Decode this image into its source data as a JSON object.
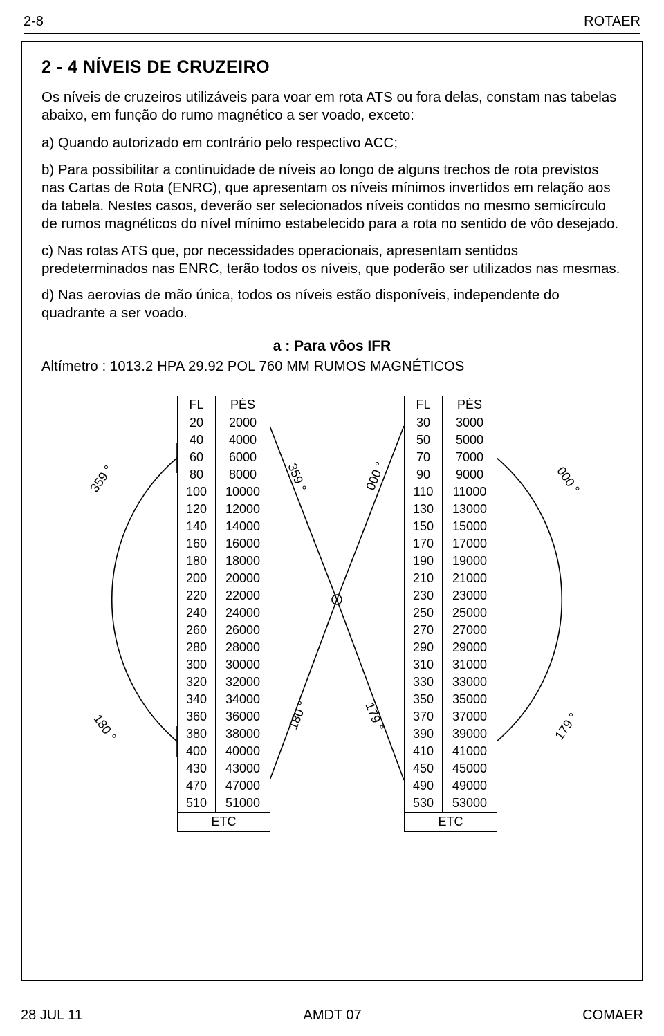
{
  "header": {
    "left": "2-8",
    "right": "ROTAER"
  },
  "section_title": "2 - 4 NÍVEIS DE CRUZEIRO",
  "p_intro": "Os níveis de cruzeiros utilizáveis para voar em rota ATS ou fora delas, constam nas tabelas abaixo, em função do rumo magnético a ser voado, exceto:",
  "p_a": "a) Quando autorizado em contrário pelo respectivo ACC;",
  "p_b": "b) Para possibilitar a continuidade de níveis ao longo de alguns trechos de rota previstos nas Cartas de Rota (ENRC), que apresentam os níveis mínimos invertidos em relação aos da  tabela. Nestes casos, deverão ser selecionados níveis contidos no mesmo semicírculo de rumos magnéticos do nível mínimo estabelecido para a rota no sentido de vôo desejado.",
  "p_c": "c) Nas rotas ATS que, por necessidades operacionais, apresentam sentidos predeterminados nas ENRC, terão todos os níveis, que poderão ser utilizados nas mesmas.",
  "p_d": "d) Nas aerovias de mão única, todos os níveis estão disponíveis, independente do quadrante a ser voado.",
  "subhead": "a   :   Para vôos IFR",
  "altimeter": "Altímetro : 1013.2 HPA 29.92 POL 760 MM RUMOS MAGNÉTICOS",
  "table": {
    "hdr_fl": "FL",
    "hdr_pes": "PÉS",
    "ftr": "ETC",
    "left": {
      "fl": [
        "20",
        "40",
        "60",
        "80",
        "100",
        "120",
        "140",
        "160",
        "180",
        "200",
        "220",
        "240",
        "260",
        "280",
        "300",
        "320",
        "340",
        "360",
        "380",
        "400",
        "430",
        "470",
        "510"
      ],
      "pes": [
        "2000",
        "4000",
        "6000",
        "8000",
        "10000",
        "12000",
        "14000",
        "16000",
        "18000",
        "20000",
        "22000",
        "24000",
        "26000",
        "28000",
        "30000",
        "32000",
        "34000",
        "36000",
        "38000",
        "40000",
        "43000",
        "47000",
        "51000"
      ]
    },
    "right": {
      "fl": [
        "30",
        "50",
        "70",
        "90",
        "110",
        "130",
        "150",
        "170",
        "190",
        "210",
        "230",
        "250",
        "270",
        "290",
        "310",
        "330",
        "350",
        "370",
        "390",
        "410",
        "450",
        "490",
        "530"
      ],
      "pes": [
        "3000",
        "5000",
        "7000",
        "9000",
        "11000",
        "13000",
        "15000",
        "17000",
        "19000",
        "21000",
        "23000",
        "25000",
        "27000",
        "29000",
        "31000",
        "33000",
        "35000",
        "37000",
        "39000",
        "41000",
        "45000",
        "49000",
        "53000"
      ]
    }
  },
  "angles": {
    "outer_left_top": "359 °",
    "outer_left_bot": "180 °",
    "inner_left_top": "359 °",
    "inner_left_bot": "180 °",
    "inner_right_top": "000 °",
    "inner_right_bot": "179 °",
    "outer_right_top": "000 °",
    "outer_right_bot": "179 °"
  },
  "stroke": "#000000",
  "stroke_w": 1.6,
  "footer": {
    "left": "28 JUL 11",
    "mid": "AMDT  07",
    "right": "COMAER"
  }
}
